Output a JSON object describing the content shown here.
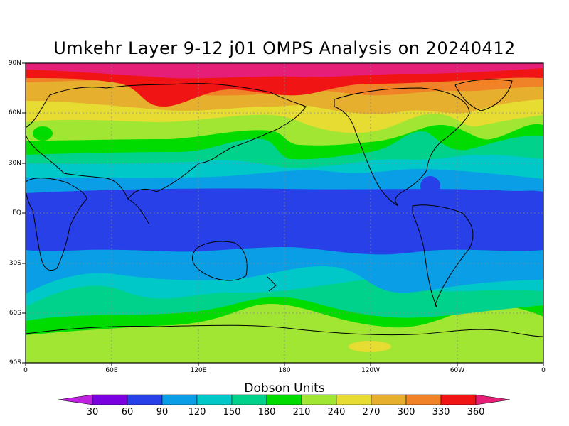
{
  "title": "Umkehr Layer 9-12 j01 OMPS Analysis on 20240412",
  "lat_labels": [
    "90N",
    "60N",
    "30N",
    "EQ",
    "30S",
    "60S",
    "90S"
  ],
  "lon_labels": [
    "0",
    "60E",
    "120E",
    "180",
    "120W",
    "60W",
    "0"
  ],
  "legend": {
    "title": "Dobson Units",
    "levels": [
      "30",
      "60",
      "90",
      "120",
      "150",
      "180",
      "210",
      "240",
      "270",
      "300",
      "330",
      "360"
    ],
    "colors": [
      "#c020e0",
      "#7a00e0",
      "#2840e8",
      "#0a9ee6",
      "#00c8c8",
      "#00d28c",
      "#00dc00",
      "#a0e632",
      "#e6dc32",
      "#e6af2d",
      "#f08228",
      "#f01414",
      "#e61e78"
    ]
  },
  "chart_data": {
    "type": "heatmap",
    "title": "Umkehr Layer 9-12 j01 OMPS Analysis on 20240412",
    "units": "Dobson Units",
    "x_range": [
      "0",
      "360"
    ],
    "y_range": [
      "90S",
      "90N"
    ],
    "contour_levels": [
      30,
      60,
      90,
      120,
      150,
      180,
      210,
      240,
      270,
      300,
      330,
      360
    ],
    "zonal_profile": [
      {
        "lat": "90N",
        "value": 345
      },
      {
        "lat": "75N",
        "value": 315
      },
      {
        "lat": "60N",
        "value": 285
      },
      {
        "lat": "45N",
        "value": 255
      },
      {
        "lat": "30N",
        "value": 200
      },
      {
        "lat": "15N",
        "value": 120
      },
      {
        "lat": "EQ",
        "value": 80
      },
      {
        "lat": "15S",
        "value": 85
      },
      {
        "lat": "30S",
        "value": 130
      },
      {
        "lat": "45S",
        "value": 160
      },
      {
        "lat": "60S",
        "value": 220
      },
      {
        "lat": "75S",
        "value": 235
      },
      {
        "lat": "90S",
        "value": 235
      }
    ]
  }
}
